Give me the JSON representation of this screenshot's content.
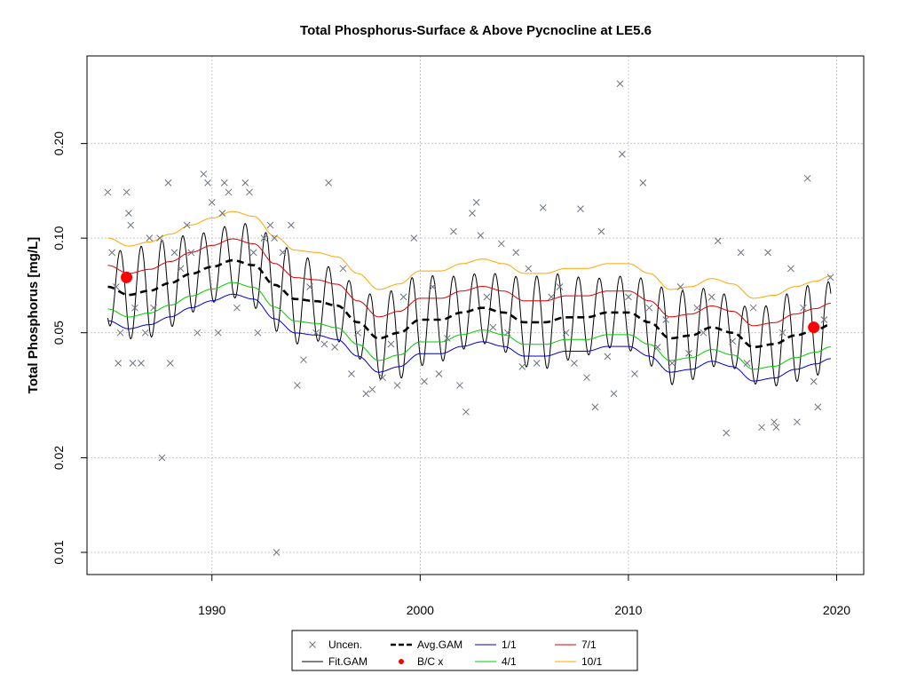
{
  "chart_data": {
    "type": "line",
    "title": "Total Phosphorus-Surface & Above Pycnocline at LE5.6",
    "xlabel": "",
    "ylabel": "Total Phosphorus [mg/L]",
    "y_scale": "log",
    "xlim": [
      1984,
      2021.3
    ],
    "ylim": [
      0.0085,
      0.38
    ],
    "x_ticks": [
      1990,
      2000,
      2010,
      2020
    ],
    "y_ticks": [
      0.01,
      0.02,
      0.05,
      0.1,
      0.2
    ],
    "y_tick_labels": [
      "0.01",
      "0.02",
      "0.05",
      "0.10",
      "0.20"
    ],
    "grid": true,
    "legend_position": "bottom",
    "legend": [
      {
        "label": "Uncen.",
        "type": "point",
        "symbol": "x",
        "color": "#6b7280"
      },
      {
        "label": "Fit.GAM",
        "type": "line",
        "color": "#000000"
      },
      {
        "label": "Avg.GAM",
        "type": "dashed",
        "color": "#000000"
      },
      {
        "label": "B/C x",
        "type": "dot",
        "color": "#ff0000"
      },
      {
        "label": "1/1",
        "type": "line",
        "color": "#0000cc"
      },
      {
        "label": "4/1",
        "type": "line",
        "color": "#00cc00"
      },
      {
        "label": "7/1",
        "type": "line",
        "color": "#dd0000"
      },
      {
        "label": "10/1",
        "type": "line",
        "color": "#ffa500"
      }
    ],
    "avg_gam": [
      {
        "x": 1985,
        "y": 0.07
      },
      {
        "x": 1986,
        "y": 0.066
      },
      {
        "x": 1987,
        "y": 0.068
      },
      {
        "x": 1988,
        "y": 0.072
      },
      {
        "x": 1989,
        "y": 0.077
      },
      {
        "x": 1990,
        "y": 0.081
      },
      {
        "x": 1991,
        "y": 0.085
      },
      {
        "x": 1992,
        "y": 0.082
      },
      {
        "x": 1993,
        "y": 0.071
      },
      {
        "x": 1994,
        "y": 0.064
      },
      {
        "x": 1995,
        "y": 0.063
      },
      {
        "x": 1996,
        "y": 0.061
      },
      {
        "x": 1997,
        "y": 0.054
      },
      {
        "x": 1998,
        "y": 0.048
      },
      {
        "x": 1999,
        "y": 0.05
      },
      {
        "x": 2000,
        "y": 0.055
      },
      {
        "x": 2001,
        "y": 0.055
      },
      {
        "x": 2002,
        "y": 0.058
      },
      {
        "x": 2003,
        "y": 0.06
      },
      {
        "x": 2004,
        "y": 0.058
      },
      {
        "x": 2005,
        "y": 0.054
      },
      {
        "x": 2006,
        "y": 0.054
      },
      {
        "x": 2007,
        "y": 0.056
      },
      {
        "x": 2008,
        "y": 0.056
      },
      {
        "x": 2009,
        "y": 0.058
      },
      {
        "x": 2010,
        "y": 0.058
      },
      {
        "x": 2011,
        "y": 0.054
      },
      {
        "x": 2012,
        "y": 0.048
      },
      {
        "x": 2013,
        "y": 0.049
      },
      {
        "x": 2014,
        "y": 0.052
      },
      {
        "x": 2015,
        "y": 0.05
      },
      {
        "x": 2016,
        "y": 0.045
      },
      {
        "x": 2017,
        "y": 0.046
      },
      {
        "x": 2018,
        "y": 0.049
      },
      {
        "x": 2019,
        "y": 0.051
      },
      {
        "x": 2019.7,
        "y": 0.053
      }
    ],
    "seasonal_factors": {
      "1/1": 0.78,
      "4/1": 0.85,
      "7/1": 1.17,
      "10/1": 1.43
    },
    "bc_points": [
      {
        "x": 1985.9,
        "y": 0.075
      },
      {
        "x": 2018.9,
        "y": 0.052
      }
    ],
    "uncensored_points": [
      {
        "x": 1985.0,
        "y": 0.14
      },
      {
        "x": 1985.2,
        "y": 0.09
      },
      {
        "x": 1985.4,
        "y": 0.07
      },
      {
        "x": 1985.5,
        "y": 0.04
      },
      {
        "x": 1985.6,
        "y": 0.05
      },
      {
        "x": 1985.9,
        "y": 0.14
      },
      {
        "x": 1986.0,
        "y": 0.12
      },
      {
        "x": 1986.1,
        "y": 0.11
      },
      {
        "x": 1986.2,
        "y": 0.04
      },
      {
        "x": 1986.3,
        "y": 0.06
      },
      {
        "x": 1986.6,
        "y": 0.04
      },
      {
        "x": 1986.8,
        "y": 0.05
      },
      {
        "x": 1987.0,
        "y": 0.1
      },
      {
        "x": 1987.2,
        "y": 0.06
      },
      {
        "x": 1987.5,
        "y": 0.1
      },
      {
        "x": 1987.6,
        "y": 0.02
      },
      {
        "x": 1987.9,
        "y": 0.15
      },
      {
        "x": 1988.0,
        "y": 0.04
      },
      {
        "x": 1988.2,
        "y": 0.09
      },
      {
        "x": 1988.5,
        "y": 0.08
      },
      {
        "x": 1988.8,
        "y": 0.11
      },
      {
        "x": 1989.0,
        "y": 0.09
      },
      {
        "x": 1989.3,
        "y": 0.05
      },
      {
        "x": 1989.6,
        "y": 0.16
      },
      {
        "x": 1989.8,
        "y": 0.15
      },
      {
        "x": 1990.0,
        "y": 0.13
      },
      {
        "x": 1990.3,
        "y": 0.05
      },
      {
        "x": 1990.5,
        "y": 0.12
      },
      {
        "x": 1990.6,
        "y": 0.15
      },
      {
        "x": 1990.8,
        "y": 0.14
      },
      {
        "x": 1991.2,
        "y": 0.06
      },
      {
        "x": 1991.6,
        "y": 0.15
      },
      {
        "x": 1991.8,
        "y": 0.14
      },
      {
        "x": 1992.0,
        "y": 0.09
      },
      {
        "x": 1992.2,
        "y": 0.05
      },
      {
        "x": 1992.5,
        "y": 0.1
      },
      {
        "x": 1992.8,
        "y": 0.11
      },
      {
        "x": 1993.0,
        "y": 0.1
      },
      {
        "x": 1993.1,
        "y": 0.01
      },
      {
        "x": 1993.4,
        "y": 0.09
      },
      {
        "x": 1993.8,
        "y": 0.11
      },
      {
        "x": 1994.1,
        "y": 0.034
      },
      {
        "x": 1994.4,
        "y": 0.041
      },
      {
        "x": 1994.7,
        "y": 0.07
      },
      {
        "x": 1995.0,
        "y": 0.05
      },
      {
        "x": 1995.4,
        "y": 0.046
      },
      {
        "x": 1995.6,
        "y": 0.15
      },
      {
        "x": 1995.9,
        "y": 0.045
      },
      {
        "x": 1996.3,
        "y": 0.08
      },
      {
        "x": 1996.7,
        "y": 0.037
      },
      {
        "x": 1997.0,
        "y": 0.05
      },
      {
        "x": 1997.4,
        "y": 0.032
      },
      {
        "x": 1997.7,
        "y": 0.033
      },
      {
        "x": 1998.2,
        "y": 0.036
      },
      {
        "x": 1998.6,
        "y": 0.046
      },
      {
        "x": 1998.9,
        "y": 0.034
      },
      {
        "x": 1999.2,
        "y": 0.065
      },
      {
        "x": 1999.7,
        "y": 0.1
      },
      {
        "x": 2000.2,
        "y": 0.035
      },
      {
        "x": 2000.6,
        "y": 0.07
      },
      {
        "x": 2000.9,
        "y": 0.037
      },
      {
        "x": 2001.3,
        "y": 0.048
      },
      {
        "x": 2001.6,
        "y": 0.105
      },
      {
        "x": 2001.9,
        "y": 0.034
      },
      {
        "x": 2002.2,
        "y": 0.028
      },
      {
        "x": 2002.5,
        "y": 0.12
      },
      {
        "x": 2002.7,
        "y": 0.13
      },
      {
        "x": 2002.9,
        "y": 0.102
      },
      {
        "x": 2003.2,
        "y": 0.065
      },
      {
        "x": 2003.5,
        "y": 0.052
      },
      {
        "x": 2003.9,
        "y": 0.096
      },
      {
        "x": 2004.2,
        "y": 0.05
      },
      {
        "x": 2004.6,
        "y": 0.09
      },
      {
        "x": 2004.9,
        "y": 0.039
      },
      {
        "x": 2005.2,
        "y": 0.08
      },
      {
        "x": 2005.6,
        "y": 0.04
      },
      {
        "x": 2005.9,
        "y": 0.125
      },
      {
        "x": 2006.3,
        "y": 0.065
      },
      {
        "x": 2006.7,
        "y": 0.07
      },
      {
        "x": 2007.0,
        "y": 0.05
      },
      {
        "x": 2007.4,
        "y": 0.04
      },
      {
        "x": 2007.7,
        "y": 0.124
      },
      {
        "x": 2008.0,
        "y": 0.036
      },
      {
        "x": 2008.4,
        "y": 0.029
      },
      {
        "x": 2008.7,
        "y": 0.105
      },
      {
        "x": 2009.0,
        "y": 0.042
      },
      {
        "x": 2009.3,
        "y": 0.032
      },
      {
        "x": 2009.6,
        "y": 0.31
      },
      {
        "x": 2009.7,
        "y": 0.185
      },
      {
        "x": 2010.0,
        "y": 0.065
      },
      {
        "x": 2010.3,
        "y": 0.037
      },
      {
        "x": 2010.7,
        "y": 0.15
      },
      {
        "x": 2011.0,
        "y": 0.06
      },
      {
        "x": 2011.4,
        "y": 0.045
      },
      {
        "x": 2011.8,
        "y": 0.055
      },
      {
        "x": 2012.1,
        "y": 0.04
      },
      {
        "x": 2012.5,
        "y": 0.07
      },
      {
        "x": 2012.9,
        "y": 0.043
      },
      {
        "x": 2013.3,
        "y": 0.06
      },
      {
        "x": 2013.6,
        "y": 0.05
      },
      {
        "x": 2014.0,
        "y": 0.065
      },
      {
        "x": 2014.3,
        "y": 0.098
      },
      {
        "x": 2014.7,
        "y": 0.024
      },
      {
        "x": 2015.0,
        "y": 0.047
      },
      {
        "x": 2015.4,
        "y": 0.09
      },
      {
        "x": 2015.7,
        "y": 0.04
      },
      {
        "x": 2016.0,
        "y": 0.06
      },
      {
        "x": 2016.4,
        "y": 0.025
      },
      {
        "x": 2016.7,
        "y": 0.09
      },
      {
        "x": 2017.0,
        "y": 0.026
      },
      {
        "x": 2017.1,
        "y": 0.025
      },
      {
        "x": 2017.4,
        "y": 0.05
      },
      {
        "x": 2017.8,
        "y": 0.08
      },
      {
        "x": 2018.1,
        "y": 0.026
      },
      {
        "x": 2018.4,
        "y": 0.06
      },
      {
        "x": 2018.6,
        "y": 0.155
      },
      {
        "x": 2018.9,
        "y": 0.035
      },
      {
        "x": 2019.1,
        "y": 0.029
      },
      {
        "x": 2019.4,
        "y": 0.055
      },
      {
        "x": 2019.7,
        "y": 0.075
      }
    ]
  }
}
